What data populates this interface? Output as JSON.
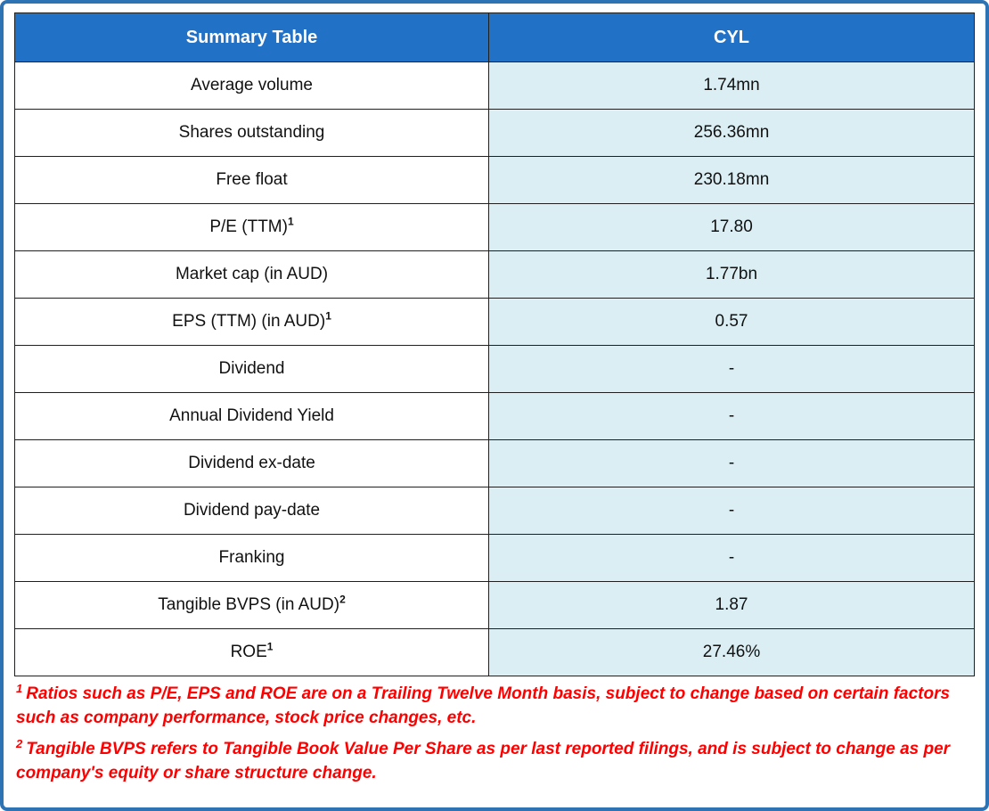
{
  "frame": {
    "border_color": "#2e74b5",
    "background": "#ffffff"
  },
  "colors": {
    "header_bg": "#2171c7",
    "header_text": "#ffffff",
    "value_column_bg": "#daeef3",
    "cell_border": "#1f1f1f",
    "footnote_text": "#ff0000"
  },
  "table": {
    "header": {
      "left": "Summary Table",
      "right": "CYL"
    },
    "rows": [
      {
        "label": "Average volume",
        "sup": "",
        "value": "1.74mn"
      },
      {
        "label": "Shares outstanding",
        "sup": "",
        "value": "256.36mn"
      },
      {
        "label": "Free float",
        "sup": "",
        "value": "230.18mn"
      },
      {
        "label": "P/E (TTM)",
        "sup": "1",
        "value": "17.80"
      },
      {
        "label": "Market cap (in AUD)",
        "sup": "",
        "value": "1.77bn"
      },
      {
        "label": "EPS (TTM) (in AUD)",
        "sup": "1",
        "value": "0.57"
      },
      {
        "label": "Dividend",
        "sup": "",
        "value": "-"
      },
      {
        "label": "Annual Dividend Yield",
        "sup": "",
        "value": "-"
      },
      {
        "label": "Dividend ex-date",
        "sup": "",
        "value": "-"
      },
      {
        "label": "Dividend pay-date",
        "sup": "",
        "value": "-"
      },
      {
        "label": "Franking",
        "sup": "",
        "value": "-"
      },
      {
        "label": "Tangible BVPS (in AUD)",
        "sup": "2",
        "value": "1.87"
      },
      {
        "label": "ROE",
        "sup": "1",
        "value": "27.46%"
      }
    ]
  },
  "footnotes": [
    {
      "sup": "1",
      "text": "Ratios such as P/E, EPS and ROE are on a Trailing Twelve Month basis, subject to change based on certain factors such as company performance, stock price changes, etc."
    },
    {
      "sup": "2",
      "text": "Tangible BVPS refers to Tangible Book Value Per Share as per last reported filings, and is subject to change as per company's equity or share structure change."
    }
  ],
  "chart_data": {
    "type": "table",
    "title": "Summary Table",
    "columns": [
      "Summary Table",
      "CYL"
    ],
    "rows": [
      [
        "Average volume",
        "1.74mn"
      ],
      [
        "Shares outstanding",
        "256.36mn"
      ],
      [
        "Free float",
        "230.18mn"
      ],
      [
        "P/E (TTM)¹",
        "17.80"
      ],
      [
        "Market cap (in AUD)",
        "1.77bn"
      ],
      [
        "EPS (TTM) (in AUD)¹",
        "0.57"
      ],
      [
        "Dividend",
        "-"
      ],
      [
        "Annual Dividend Yield",
        "-"
      ],
      [
        "Dividend ex-date",
        "-"
      ],
      [
        "Dividend pay-date",
        "-"
      ],
      [
        "Franking",
        "-"
      ],
      [
        "Tangible BVPS (in AUD)²",
        "1.87"
      ],
      [
        "ROE¹",
        "27.46%"
      ]
    ],
    "footnotes": [
      "¹ Ratios such as P/E, EPS and ROE are on a Trailing Twelve Month basis, subject to change based on certain factors such as company performance, stock price changes, etc.",
      "² Tangible BVPS refers to Tangible Book Value Per Share as per last reported filings, and is subject to change as per company's equity or share structure change."
    ]
  }
}
